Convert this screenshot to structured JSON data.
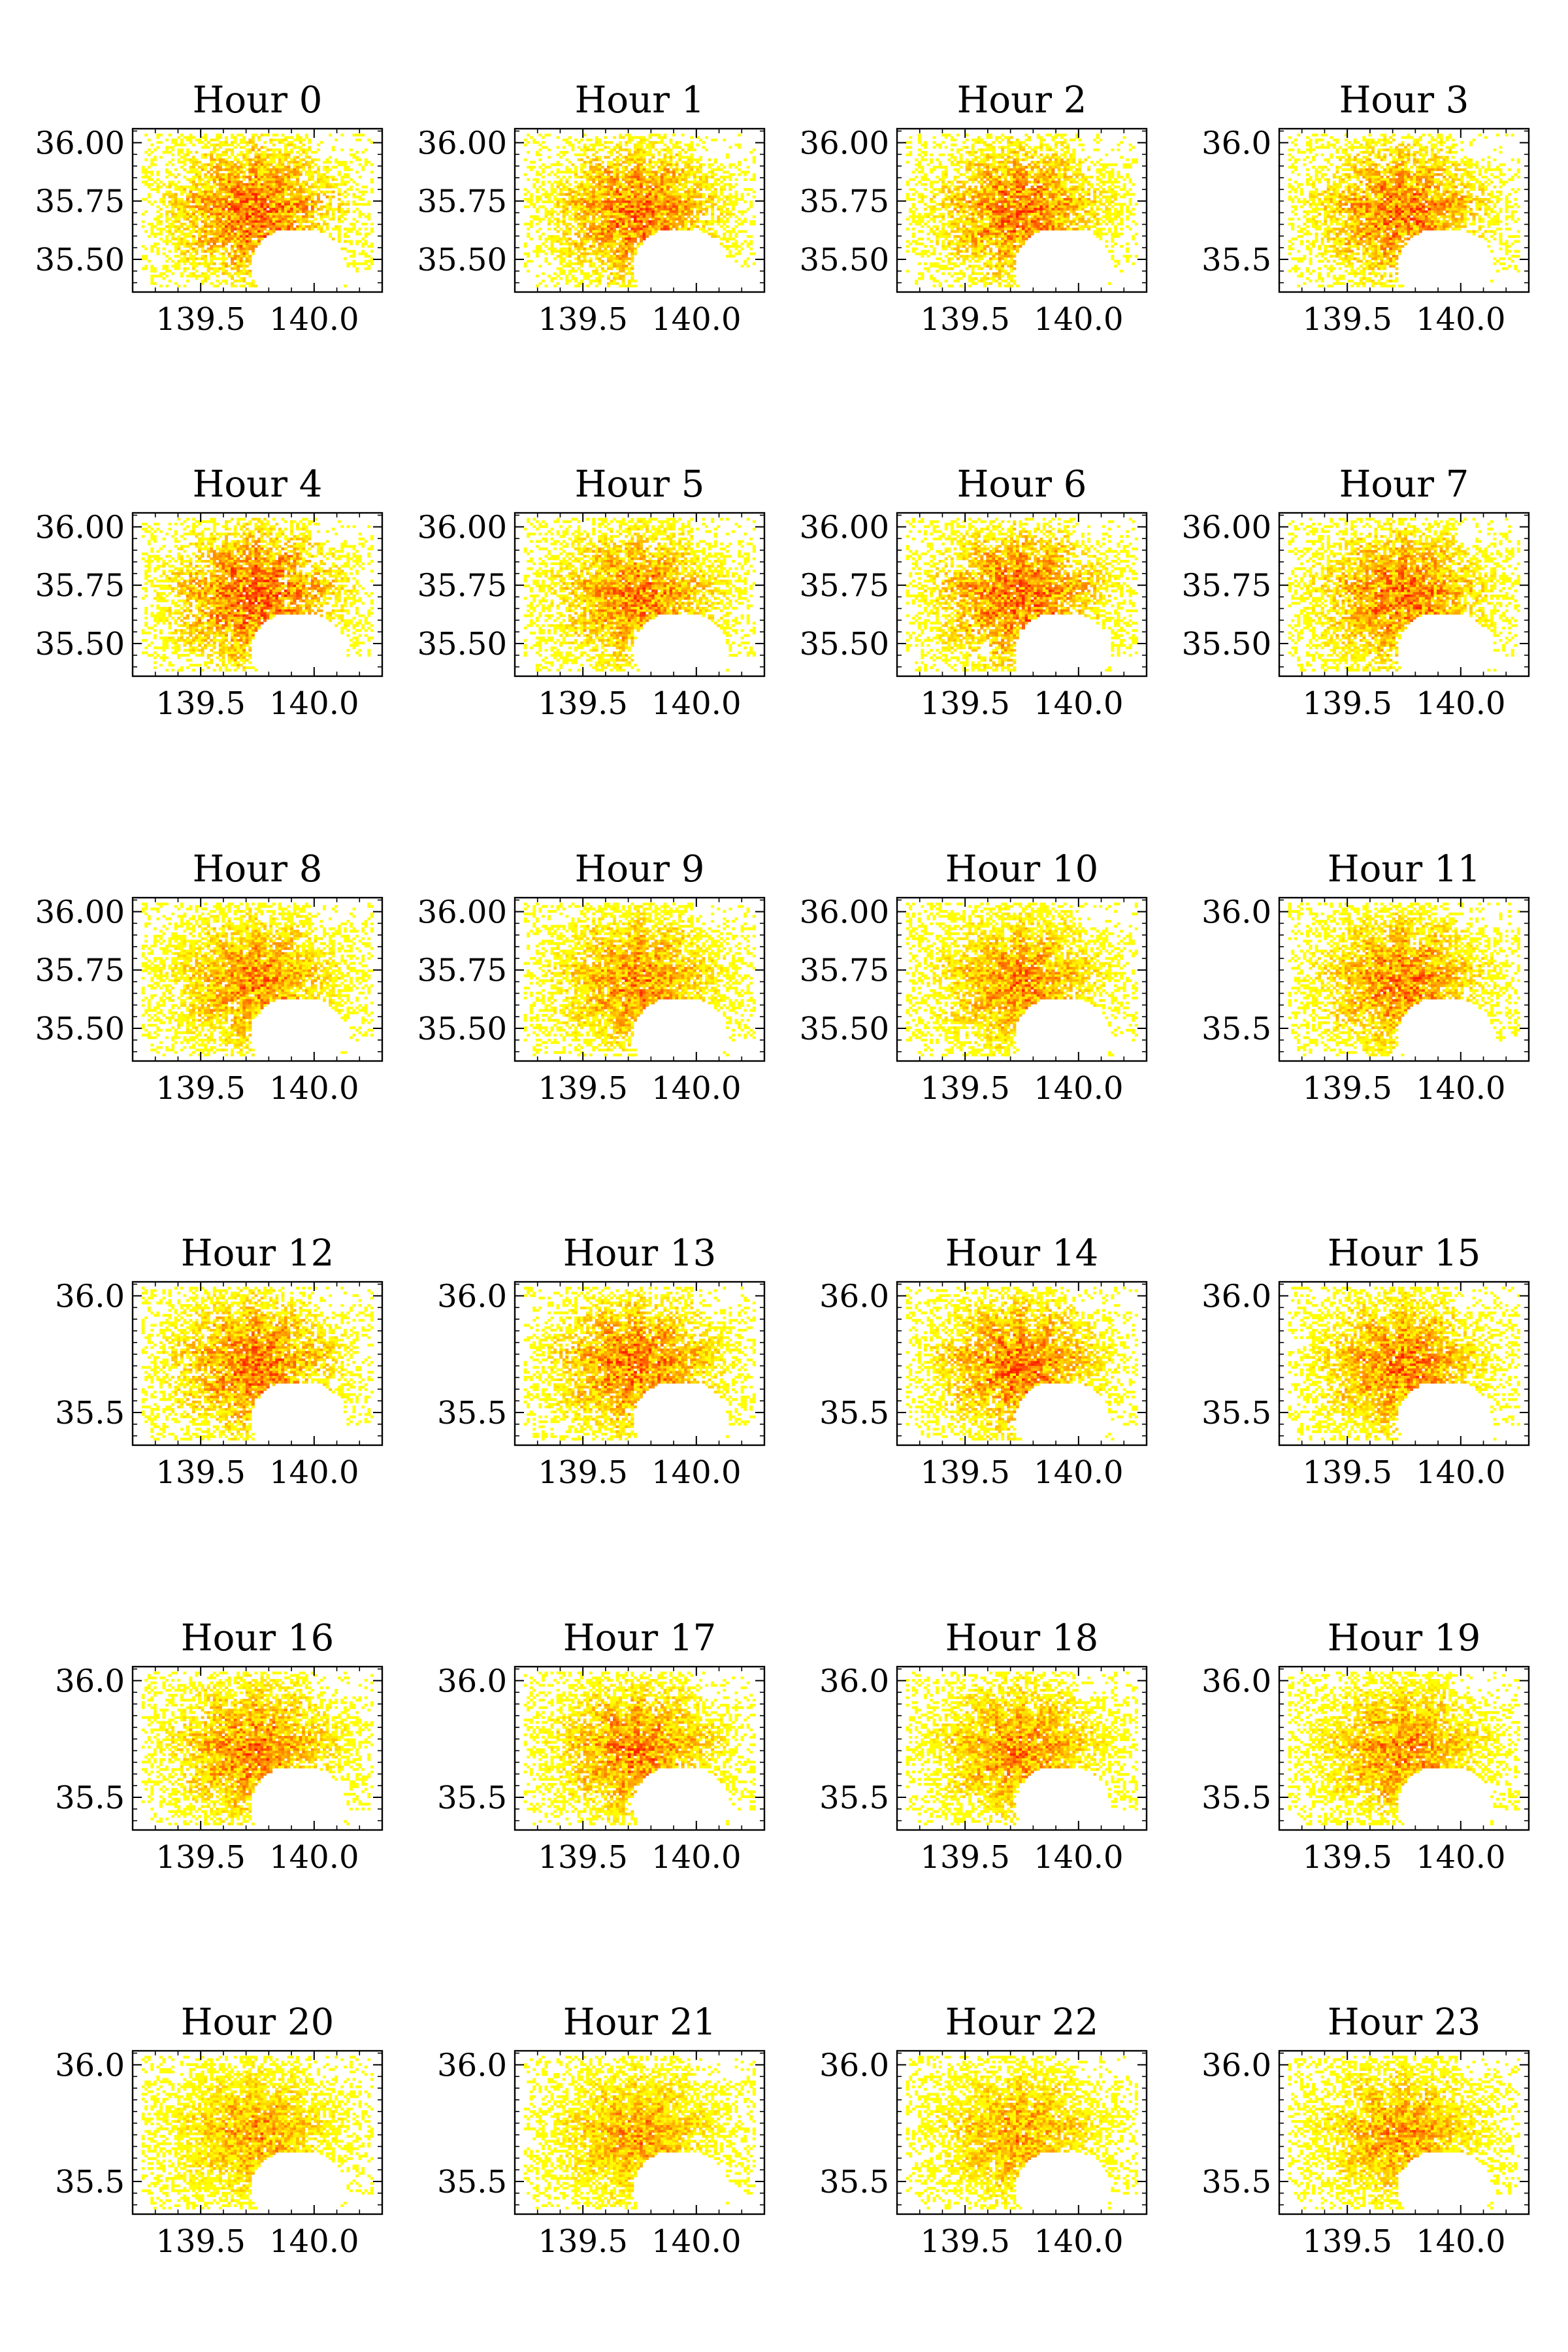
{
  "chart_data": [
    {
      "type": "heatmap",
      "title": "Hour 0",
      "xticks": [
        "139.5",
        "140.0"
      ],
      "yticks": [
        "36.00",
        "35.75",
        "35.50"
      ],
      "xlim": [
        139.2,
        140.3
      ],
      "ylim": [
        35.36,
        36.06
      ],
      "colormap": "autumn_r",
      "density": 1.05
    },
    {
      "type": "heatmap",
      "title": "Hour 1",
      "xticks": [
        "139.5",
        "140.0"
      ],
      "yticks": [
        "36.00",
        "35.75",
        "35.50"
      ],
      "xlim": [
        139.2,
        140.3
      ],
      "ylim": [
        35.36,
        36.06
      ],
      "colormap": "autumn_r",
      "density": 1.0
    },
    {
      "type": "heatmap",
      "title": "Hour 2",
      "xticks": [
        "139.5",
        "140.0"
      ],
      "yticks": [
        "36.00",
        "35.75",
        "35.50"
      ],
      "xlim": [
        139.2,
        140.3
      ],
      "ylim": [
        35.36,
        36.06
      ],
      "colormap": "autumn_r",
      "density": 1.0
    },
    {
      "type": "heatmap",
      "title": "Hour 3",
      "xticks": [
        "139.5",
        "140.0"
      ],
      "yticks": [
        "36.0",
        "35.5"
      ],
      "xlim": [
        139.2,
        140.3
      ],
      "ylim": [
        35.36,
        36.06
      ],
      "colormap": "autumn_r",
      "density": 1.0
    },
    {
      "type": "heatmap",
      "title": "Hour 4",
      "xticks": [
        "139.5",
        "140.0"
      ],
      "yticks": [
        "36.00",
        "35.75",
        "35.50"
      ],
      "xlim": [
        139.2,
        140.3
      ],
      "ylim": [
        35.36,
        36.06
      ],
      "colormap": "autumn_r",
      "density": 1.1
    },
    {
      "type": "heatmap",
      "title": "Hour 5",
      "xticks": [
        "139.5",
        "140.0"
      ],
      "yticks": [
        "36.00",
        "35.75",
        "35.50"
      ],
      "xlim": [
        139.2,
        140.3
      ],
      "ylim": [
        35.36,
        36.06
      ],
      "colormap": "autumn_r",
      "density": 0.95
    },
    {
      "type": "heatmap",
      "title": "Hour 6",
      "xticks": [
        "139.5",
        "140.0"
      ],
      "yticks": [
        "36.00",
        "35.75",
        "35.50"
      ],
      "xlim": [
        139.2,
        140.3
      ],
      "ylim": [
        35.36,
        36.06
      ],
      "colormap": "autumn_r",
      "density": 1.05
    },
    {
      "type": "heatmap",
      "title": "Hour 7",
      "xticks": [
        "139.5",
        "140.0"
      ],
      "yticks": [
        "36.00",
        "35.75",
        "35.50"
      ],
      "xlim": [
        139.2,
        140.3
      ],
      "ylim": [
        35.36,
        36.06
      ],
      "colormap": "autumn_r",
      "density": 1.0
    },
    {
      "type": "heatmap",
      "title": "Hour 8",
      "xticks": [
        "139.5",
        "140.0"
      ],
      "yticks": [
        "36.00",
        "35.75",
        "35.50"
      ],
      "xlim": [
        139.2,
        140.3
      ],
      "ylim": [
        35.36,
        36.06
      ],
      "colormap": "autumn_r",
      "density": 0.9
    },
    {
      "type": "heatmap",
      "title": "Hour 9",
      "xticks": [
        "139.5",
        "140.0"
      ],
      "yticks": [
        "36.00",
        "35.75",
        "35.50"
      ],
      "xlim": [
        139.2,
        140.3
      ],
      "ylim": [
        35.36,
        36.06
      ],
      "colormap": "autumn_r",
      "density": 0.9
    },
    {
      "type": "heatmap",
      "title": "Hour 10",
      "xticks": [
        "139.5",
        "140.0"
      ],
      "yticks": [
        "36.00",
        "35.75",
        "35.50"
      ],
      "xlim": [
        139.2,
        140.3
      ],
      "ylim": [
        35.36,
        36.06
      ],
      "colormap": "autumn_r",
      "density": 0.9
    },
    {
      "type": "heatmap",
      "title": "Hour 11",
      "xticks": [
        "139.5",
        "140.0"
      ],
      "yticks": [
        "36.0",
        "35.5"
      ],
      "xlim": [
        139.2,
        140.3
      ],
      "ylim": [
        35.36,
        36.06
      ],
      "colormap": "autumn_r",
      "density": 0.95
    },
    {
      "type": "heatmap",
      "title": "Hour 12",
      "xticks": [
        "139.5",
        "140.0"
      ],
      "yticks": [
        "36.0",
        "35.5"
      ],
      "xlim": [
        139.2,
        140.3
      ],
      "ylim": [
        35.36,
        36.06
      ],
      "colormap": "autumn_r",
      "density": 1.0
    },
    {
      "type": "heatmap",
      "title": "Hour 13",
      "xticks": [
        "139.5",
        "140.0"
      ],
      "yticks": [
        "36.0",
        "35.5"
      ],
      "xlim": [
        139.2,
        140.3
      ],
      "ylim": [
        35.36,
        36.06
      ],
      "colormap": "autumn_r",
      "density": 1.0
    },
    {
      "type": "heatmap",
      "title": "Hour 14",
      "xticks": [
        "139.5",
        "140.0"
      ],
      "yticks": [
        "36.0",
        "35.5"
      ],
      "xlim": [
        139.2,
        140.3
      ],
      "ylim": [
        35.36,
        36.06
      ],
      "colormap": "autumn_r",
      "density": 1.0
    },
    {
      "type": "heatmap",
      "title": "Hour 15",
      "xticks": [
        "139.5",
        "140.0"
      ],
      "yticks": [
        "36.0",
        "35.5"
      ],
      "xlim": [
        139.2,
        140.3
      ],
      "ylim": [
        35.36,
        36.06
      ],
      "colormap": "autumn_r",
      "density": 0.95
    },
    {
      "type": "heatmap",
      "title": "Hour 16",
      "xticks": [
        "139.5",
        "140.0"
      ],
      "yticks": [
        "36.0",
        "35.5"
      ],
      "xlim": [
        139.2,
        140.3
      ],
      "ylim": [
        35.36,
        36.06
      ],
      "colormap": "autumn_r",
      "density": 0.95
    },
    {
      "type": "heatmap",
      "title": "Hour 17",
      "xticks": [
        "139.5",
        "140.0"
      ],
      "yticks": [
        "36.0",
        "35.5"
      ],
      "xlim": [
        139.2,
        140.3
      ],
      "ylim": [
        35.36,
        36.06
      ],
      "colormap": "autumn_r",
      "density": 0.95
    },
    {
      "type": "heatmap",
      "title": "Hour 18",
      "xticks": [
        "139.5",
        "140.0"
      ],
      "yticks": [
        "36.0",
        "35.5"
      ],
      "xlim": [
        139.2,
        140.3
      ],
      "ylim": [
        35.36,
        36.06
      ],
      "colormap": "autumn_r",
      "density": 0.9
    },
    {
      "type": "heatmap",
      "title": "Hour 19",
      "xticks": [
        "139.5",
        "140.0"
      ],
      "yticks": [
        "36.0",
        "35.5"
      ],
      "xlim": [
        139.2,
        140.3
      ],
      "ylim": [
        35.36,
        36.06
      ],
      "colormap": "autumn_r",
      "density": 0.9
    },
    {
      "type": "heatmap",
      "title": "Hour 20",
      "xticks": [
        "139.5",
        "140.0"
      ],
      "yticks": [
        "36.0",
        "35.5"
      ],
      "xlim": [
        139.2,
        140.3
      ],
      "ylim": [
        35.36,
        36.06
      ],
      "colormap": "autumn_r",
      "density": 0.8
    },
    {
      "type": "heatmap",
      "title": "Hour 21",
      "xticks": [
        "139.5",
        "140.0"
      ],
      "yticks": [
        "36.0",
        "35.5"
      ],
      "xlim": [
        139.2,
        140.3
      ],
      "ylim": [
        35.36,
        36.06
      ],
      "colormap": "autumn_r",
      "density": 0.8
    },
    {
      "type": "heatmap",
      "title": "Hour 22",
      "xticks": [
        "139.5",
        "140.0"
      ],
      "yticks": [
        "36.0",
        "35.5"
      ],
      "xlim": [
        139.2,
        140.3
      ],
      "ylim": [
        35.36,
        36.06
      ],
      "colormap": "autumn_r",
      "density": 0.8
    },
    {
      "type": "heatmap",
      "title": "Hour 23",
      "xticks": [
        "139.5",
        "140.0"
      ],
      "yticks": [
        "36.0",
        "35.5"
      ],
      "xlim": [
        139.2,
        140.3
      ],
      "ylim": [
        35.36,
        36.06
      ],
      "colormap": "autumn_r",
      "density": 0.85
    }
  ],
  "colors": {
    "low": "#ffff00",
    "mid": "#ffb000",
    "high": "#ff2000",
    "frame": "#000000",
    "background": "#ffffff"
  }
}
